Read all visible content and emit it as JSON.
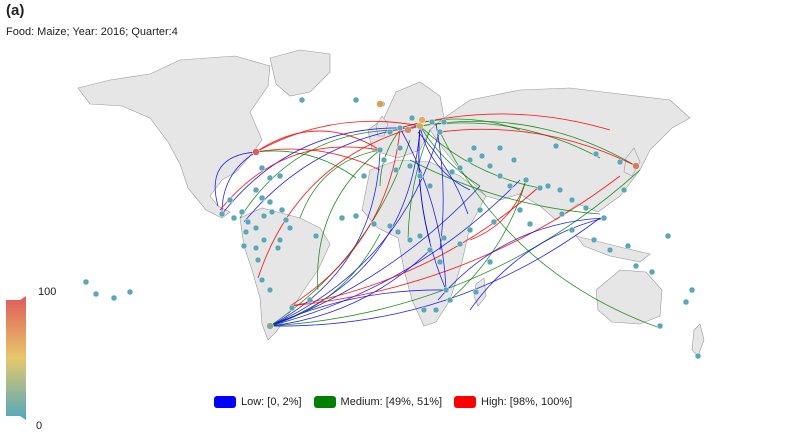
{
  "panel_label": "(a)",
  "subtitle": "Food: Maize; Year: 2016; Quarter:4",
  "colorbar": {
    "max_label": "100",
    "min_label": "0",
    "colors": [
      "#4ea8bd",
      "#e6c86a",
      "#e05a5a"
    ]
  },
  "legend": [
    {
      "label": "Low: [0, 2%]",
      "color": "#0000ff"
    },
    {
      "label": "Medium: [49%, 51%]",
      "color": "#008000"
    },
    {
      "label": "High: [98%, 100%]",
      "color": "#ff0000"
    }
  ],
  "map": {
    "land_color": "#e6e6e6",
    "border_color": "#9a9a9a",
    "node_color": "#5aa7b8"
  }
}
